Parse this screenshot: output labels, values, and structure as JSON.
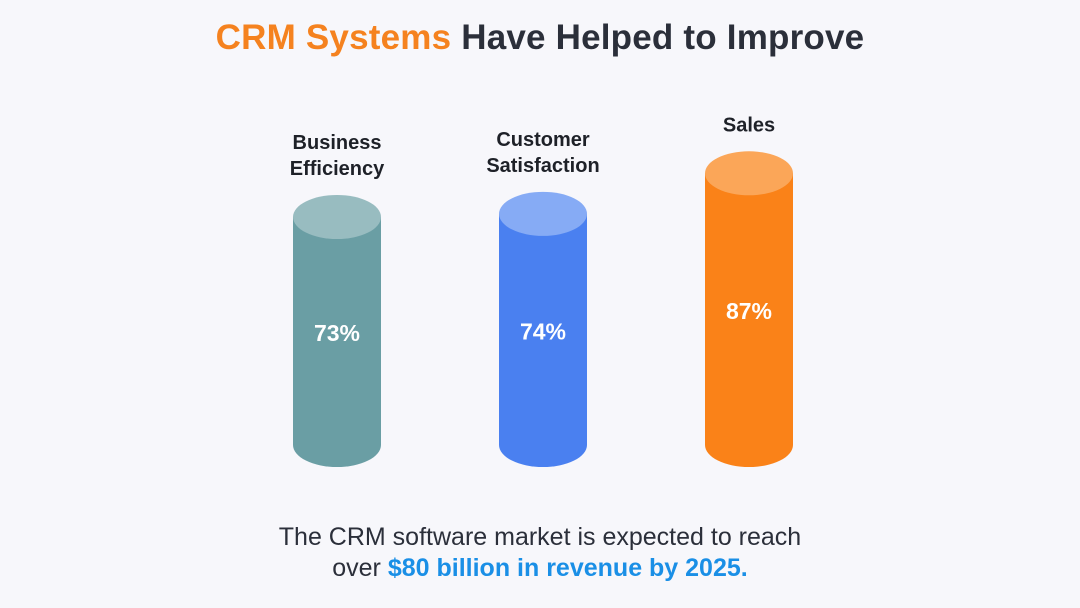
{
  "title": {
    "highlight": "CRM Systems",
    "rest": "Have Helped to Improve",
    "highlight_color": "#f5821f"
  },
  "chart_data": {
    "type": "bar",
    "categories": [
      [
        "Business",
        "Efficiency"
      ],
      [
        "Customer",
        "Satisfaction"
      ],
      [
        "Sales"
      ]
    ],
    "values": [
      73,
      74,
      87
    ],
    "value_labels": [
      "73%",
      "74%",
      "87%"
    ],
    "colors": [
      "#6a9ea4",
      "#4a80f0",
      "#fa8218"
    ],
    "top_colors": [
      "#98bcc0",
      "#86abf5",
      "#fba658"
    ],
    "ylim": [
      0,
      100
    ],
    "title": "CRM Systems Have Helped to Improve"
  },
  "footer": {
    "line1": "The CRM software market is expected to reach",
    "line2_prefix": "over",
    "line2_highlight": "$80 billion in revenue by 2025.",
    "highlight_color": "#1a8fe6"
  }
}
